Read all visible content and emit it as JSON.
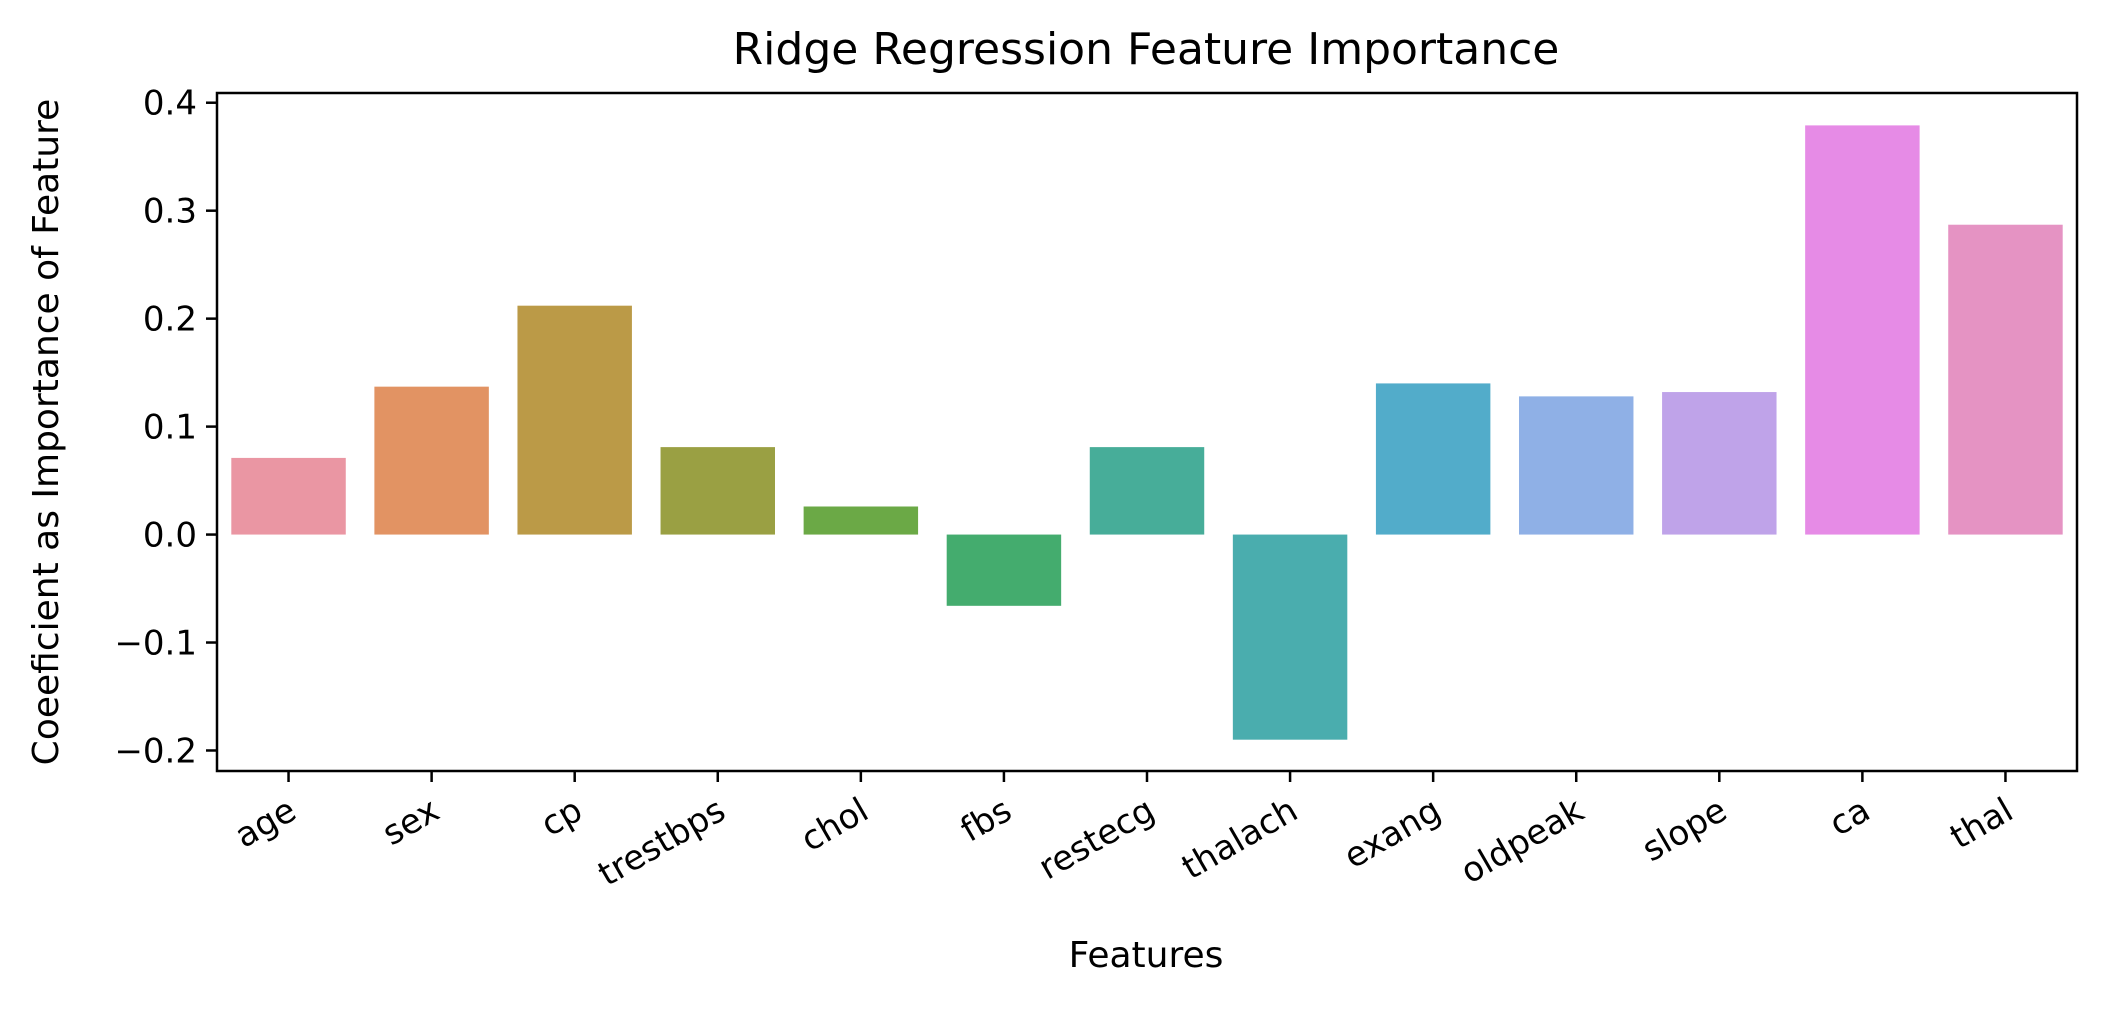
{
  "chart_data": {
    "type": "bar",
    "title": "Ridge Regression Feature Importance",
    "xlabel": "Features",
    "ylabel": "Coeeficient as Importance of Feature",
    "categories": [
      "age",
      "sex",
      "cp",
      "trestbps",
      "chol",
      "fbs",
      "restecg",
      "thalach",
      "exang",
      "oldpeak",
      "slope",
      "ca",
      "thal"
    ],
    "values": [
      0.071,
      0.137,
      0.212,
      0.081,
      0.026,
      -0.066,
      0.081,
      -0.19,
      0.14,
      0.128,
      0.132,
      0.379,
      0.287
    ],
    "colors": [
      "#EA96A3",
      "#E29363",
      "#BB9A47",
      "#9AA043",
      "#6BA946",
      "#44AC6E",
      "#47AD99",
      "#4AADAE",
      "#52ACCA",
      "#8FB0E6",
      "#BFA3E9",
      "#E68BE6",
      "#E593C3"
    ],
    "yticks": [
      "0.4",
      "0.3",
      "0.2",
      "0.1",
      "0.0",
      "−0.1",
      "−0.2"
    ],
    "ytick_values": [
      0.4,
      0.3,
      0.2,
      0.1,
      0.0,
      -0.1,
      -0.2
    ],
    "ylim": [
      -0.219,
      0.409
    ],
    "grid": false,
    "legend": "none"
  }
}
